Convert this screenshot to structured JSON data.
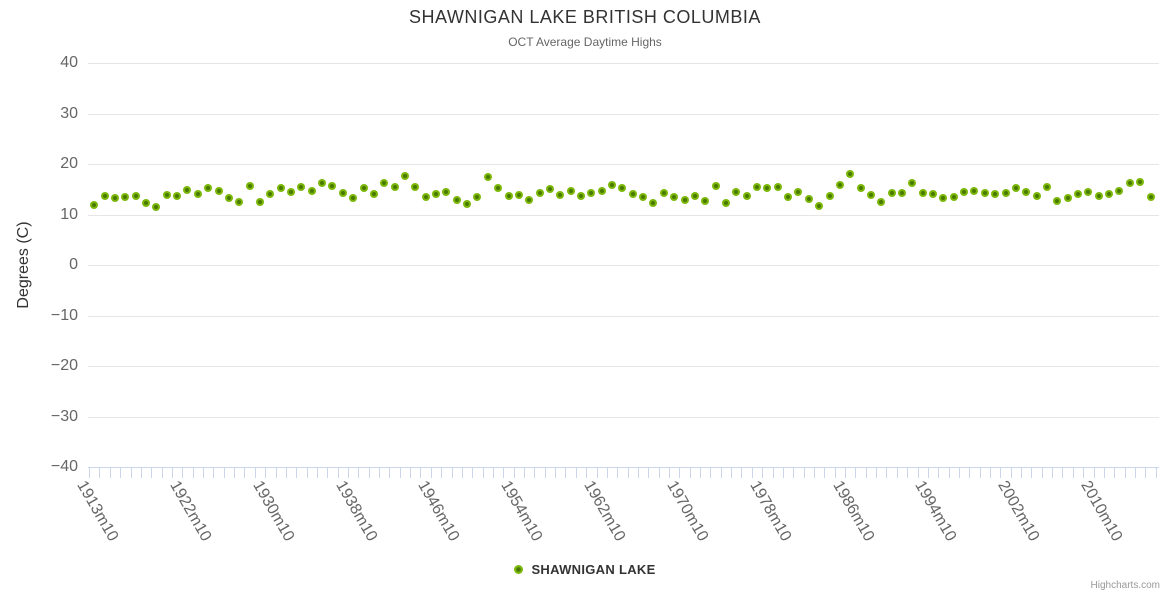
{
  "title": "SHAWNIGAN LAKE BRITISH COLUMBIA",
  "subtitle": "OCT Average Daytime Highs",
  "y_axis": {
    "title": "Degrees (C)",
    "ticks": [
      40,
      30,
      20,
      10,
      0,
      -10,
      -20,
      -30,
      -40
    ],
    "min": -40,
    "max": 40
  },
  "legend": {
    "label": "SHAWNIGAN LAKE"
  },
  "credits": {
    "label": "Highcharts.com"
  },
  "colors": {
    "point_outer": "#7cb80a",
    "point_inner": "#4a7a00",
    "grid": "#e6e6e6",
    "axis_line": "#ccd6eb",
    "title_text": "#333333",
    "subtitle_text": "#666666",
    "axis_label_text": "#666666",
    "legend_text": "#333333",
    "credits_text": "#999999"
  },
  "chart_data": {
    "type": "scatter",
    "title": "SHAWNIGAN LAKE BRITISH COLUMBIA",
    "subtitle": "OCT Average Daytime Highs",
    "xlabel": "",
    "ylabel": "Degrees (C)",
    "ylim": [
      -40,
      40
    ],
    "y_tick_step": 10,
    "grid": true,
    "legend_position": "bottom-center",
    "series_name": "SHAWNIGAN LAKE",
    "x_category_start_year": 1912,
    "x_category_suffix": "m10",
    "x_tick_labels": [
      "1913m10",
      "1922m10",
      "1930m10",
      "1938m10",
      "1946m10",
      "1954m10",
      "1962m10",
      "1970m10",
      "1978m10",
      "1986m10",
      "1994m10",
      "2002m10",
      "2010m10"
    ],
    "x_tick_indices": [
      1,
      10,
      18,
      26,
      34,
      42,
      50,
      58,
      66,
      74,
      82,
      90,
      98
    ],
    "values": [
      11.9,
      13.7,
      13.3,
      13.5,
      13.7,
      12.3,
      11.5,
      13.9,
      13.7,
      14.9,
      14.1,
      15.2,
      14.7,
      13.3,
      12.5,
      15.6,
      12.5,
      14.1,
      15.2,
      14.4,
      15.5,
      14.7,
      16.3,
      15.6,
      14.3,
      13.2,
      15.3,
      14.1,
      16.2,
      15.5,
      17.7,
      15.5,
      13.5,
      14.0,
      14.5,
      12.9,
      12.1,
      13.5,
      17.4,
      15.3,
      13.7,
      13.9,
      12.9,
      14.3,
      15.0,
      13.8,
      14.7,
      13.7,
      14.2,
      14.6,
      15.9,
      15.3,
      14.0,
      13.5,
      12.3,
      14.2,
      13.5,
      12.9,
      13.7,
      12.7,
      15.7,
      12.2,
      14.5,
      13.7,
      15.5,
      15.2,
      15.5,
      13.5,
      14.5,
      13.1,
      11.7,
      13.7,
      15.9,
      18.0,
      15.2,
      13.8,
      12.4,
      14.2,
      14.3,
      16.3,
      14.2,
      14.0,
      13.3,
      13.5,
      14.5,
      14.7,
      14.3,
      14.0,
      14.2,
      15.2,
      14.5,
      13.7,
      15.5,
      12.7,
      13.2,
      14.1,
      14.5,
      13.7,
      14.1,
      14.7,
      16.2,
      16.5,
      13.5
    ]
  }
}
